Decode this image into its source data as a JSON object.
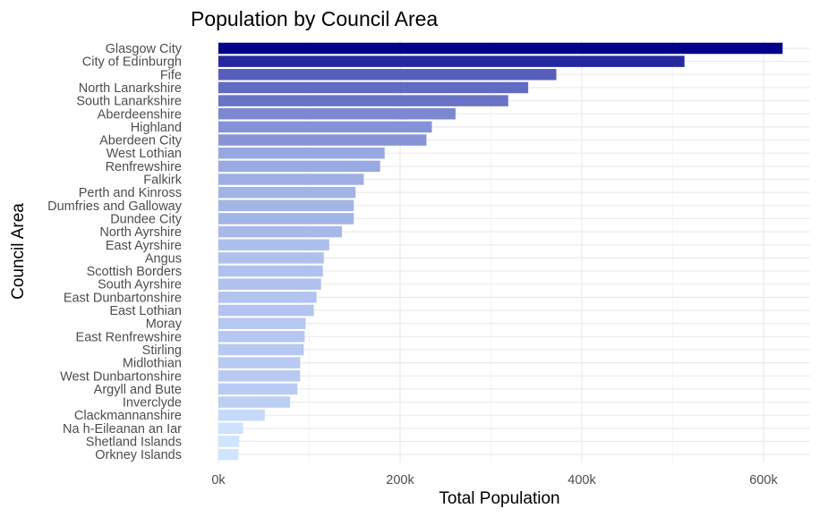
{
  "chart_data": {
    "type": "bar",
    "orientation": "horizontal",
    "title": "Population by Council Area",
    "xlabel": "Total Population",
    "ylabel": "Council Area",
    "xlim": [
      0,
      620000
    ],
    "x_ticks": [
      0,
      200000,
      400000,
      600000
    ],
    "x_tick_labels": [
      "0k",
      "200k",
      "400k",
      "600k"
    ],
    "grid": true,
    "legend": "none",
    "color_scale": {
      "low": "#cfe4ff",
      "high": "#00008b"
    },
    "categories": [
      "Glasgow City",
      "City of Edinburgh",
      "Fife",
      "North Lanarkshire",
      "South Lanarkshire",
      "Aberdeenshire",
      "Highland",
      "Aberdeen City",
      "West Lothian",
      "Renfrewshire",
      "Falkirk",
      "Perth and Kinross",
      "Dumfries and Galloway",
      "Dundee City",
      "North Ayrshire",
      "East Ayrshire",
      "Angus",
      "Scottish Borders",
      "South Ayrshire",
      "East Dunbartonshire",
      "East Lothian",
      "Moray",
      "East Renfrewshire",
      "Stirling",
      "Midlothian",
      "West Dunbartonshire",
      "Argyll and Bute",
      "Inverclyde",
      "Clackmannanshire",
      "Na h-Eileanan an Iar",
      "Shetland Islands",
      "Orkney Islands"
    ],
    "values": [
      621000,
      513000,
      372000,
      341000,
      319000,
      261000,
      235000,
      229000,
      183000,
      178000,
      160000,
      151000,
      149000,
      149000,
      136000,
      122000,
      116000,
      115000,
      113000,
      108000,
      105000,
      96000,
      95000,
      94000,
      90000,
      90000,
      87000,
      79000,
      51000,
      27000,
      23000,
      22000
    ]
  }
}
